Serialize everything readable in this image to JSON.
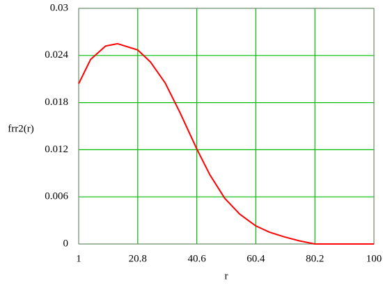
{
  "chart_data": {
    "type": "line",
    "xlabel": "r",
    "ylabel": "frr2(r)",
    "x": [
      1,
      5,
      10,
      14,
      20.8,
      25,
      30,
      35,
      40.6,
      45,
      50,
      55,
      60.4,
      65,
      70,
      75,
      80.2,
      85,
      90,
      95,
      100
    ],
    "series": [
      {
        "name": "frr2(r)",
        "color": "#ff0000",
        "values": [
          0.0204,
          0.0235,
          0.0252,
          0.0255,
          0.0247,
          0.0232,
          0.0205,
          0.0167,
          0.0121,
          0.0088,
          0.0058,
          0.0038,
          0.0023,
          0.0015,
          0.0009,
          0.0004,
          0,
          0,
          0,
          0,
          0
        ]
      }
    ],
    "xlim": [
      1,
      100
    ],
    "xticks": [
      1,
      20.8,
      40.6,
      60.4,
      80.2,
      100
    ],
    "ylim": [
      0,
      0.03
    ],
    "yticks": [
      0,
      0.006,
      0.012,
      0.018,
      0.024,
      0.03
    ],
    "grid": true,
    "grid_color": "#00bb00"
  }
}
